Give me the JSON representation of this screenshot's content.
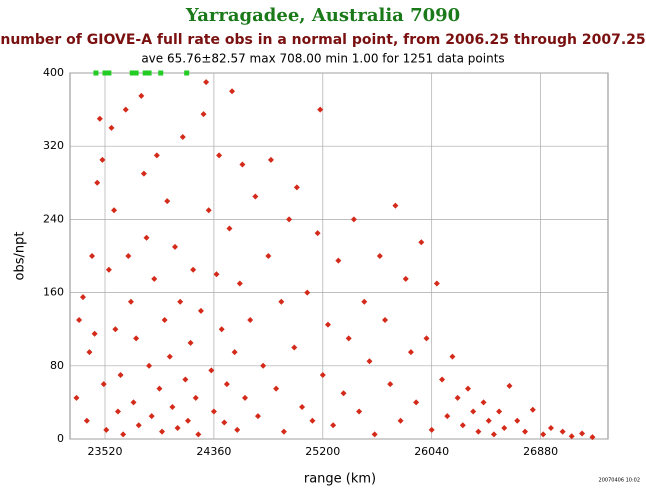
{
  "chart_data": {
    "type": "scatter",
    "title": "Yarragadee, Australia 7090",
    "subtitle": "number of GIOVE-A full rate obs in a normal point, from 2006.25 through 2007.25",
    "stats": "ave 65.76±82.57 max 708.00 min 1.00 for 1251 data points",
    "x_label": "range (km)",
    "y_label": "obs/npt",
    "timestamp": "20070406 10:02",
    "xlim": [
      23250,
      27400
    ],
    "ylim": [
      0,
      400
    ],
    "xticks": [
      23520,
      24360,
      25200,
      26040,
      26880
    ],
    "yticks": [
      0,
      80,
      160,
      240,
      320,
      400
    ],
    "grid": true,
    "series": [
      {
        "color": "#d42a1a",
        "x": [
          23300,
          23320,
          23350,
          23380,
          23400,
          23420,
          23440,
          23460,
          23480,
          23500,
          23510,
          23530,
          23550,
          23570,
          23590,
          23600,
          23620,
          23640,
          23660,
          23680,
          23700,
          23720,
          23740,
          23760,
          23780,
          23800,
          23820,
          23840,
          23860,
          23880,
          23900,
          23920,
          23940,
          23960,
          23980,
          24000,
          24020,
          24040,
          24060,
          24080,
          24100,
          24120,
          24140,
          24160,
          24180,
          24200,
          24220,
          24240,
          24260,
          24280,
          24300,
          24320,
          24340,
          24360,
          24380,
          24400,
          24420,
          24440,
          24460,
          24480,
          24500,
          24520,
          24540,
          24560,
          24580,
          24600,
          24640,
          24680,
          24700,
          24740,
          24780,
          24800,
          24840,
          24880,
          24900,
          24940,
          24980,
          25000,
          25040,
          25080,
          25120,
          25160,
          25180,
          25200,
          25240,
          25280,
          25320,
          25360,
          25400,
          25440,
          25480,
          25520,
          25560,
          25600,
          25640,
          25680,
          25720,
          25760,
          25800,
          25840,
          25880,
          25920,
          25960,
          26000,
          26040,
          26080,
          26120,
          26160,
          26200,
          26240,
          26280,
          26320,
          26360,
          26400,
          26440,
          26480,
          26520,
          26560,
          26600,
          26640,
          26700,
          26760,
          26820,
          26900,
          26960,
          27050,
          27120,
          27200,
          27280
        ],
        "values": [
          45,
          130,
          155,
          20,
          95,
          200,
          115,
          280,
          350,
          305,
          60,
          10,
          185,
          340,
          250,
          120,
          30,
          70,
          5,
          360,
          200,
          150,
          40,
          110,
          15,
          375,
          290,
          220,
          80,
          25,
          175,
          310,
          55,
          8,
          130,
          260,
          90,
          35,
          210,
          12,
          150,
          330,
          65,
          20,
          105,
          185,
          45,
          5,
          140,
          355,
          390,
          250,
          75,
          30,
          180,
          310,
          120,
          18,
          60,
          230,
          380,
          95,
          10,
          170,
          300,
          45,
          130,
          265,
          25,
          80,
          200,
          305,
          55,
          150,
          8,
          240,
          100,
          275,
          35,
          160,
          20,
          225,
          360,
          70,
          125,
          15,
          195,
          50,
          110,
          240,
          30,
          150,
          85,
          5,
          200,
          130,
          60,
          255,
          20,
          175,
          95,
          40,
          215,
          110,
          10,
          170,
          65,
          25,
          90,
          45,
          15,
          55,
          30,
          8,
          40,
          20,
          5,
          30,
          12,
          58,
          20,
          8,
          32,
          5,
          12,
          8,
          3,
          6,
          2
        ]
      },
      {
        "color": "#22cc22",
        "x": [
          23450,
          23520,
          23550,
          23730,
          23760,
          23830,
          23860,
          23950,
          24150
        ],
        "values": [
          400,
          400,
          400,
          400,
          400,
          400,
          400,
          400,
          400
        ]
      }
    ]
  }
}
